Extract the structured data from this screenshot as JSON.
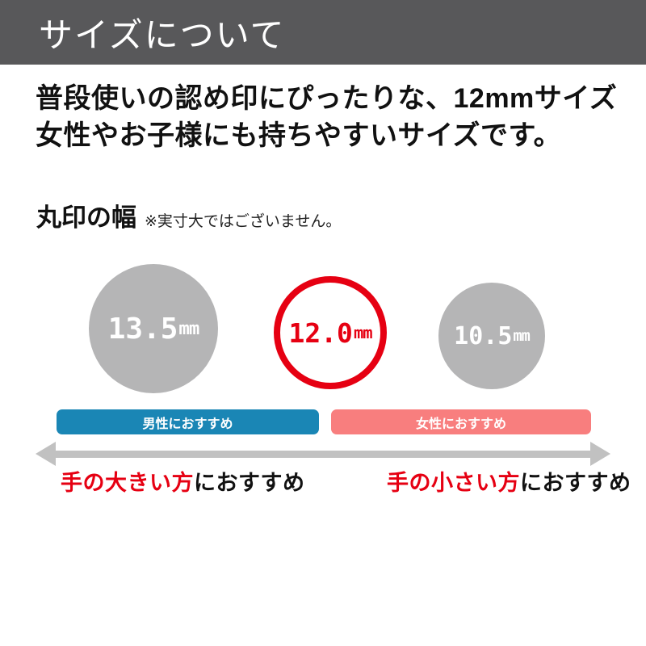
{
  "header": {
    "title": "サイズについて"
  },
  "intro": {
    "line1": "普段使いの認め印にぴったりな、12mmサイズ",
    "line2": "女性やお子様にも持ちやすいサイズです。"
  },
  "section": {
    "title": "丸印の幅",
    "note": "※実寸大ではございません。"
  },
  "sizes": [
    {
      "value": "13.5",
      "unit": "mm",
      "style": "gray"
    },
    {
      "value": "12.0",
      "unit": "mm",
      "style": "red-outline-selected"
    },
    {
      "value": "10.5",
      "unit": "mm",
      "style": "gray"
    }
  ],
  "recommend_bars": [
    {
      "label": "男性におすすめ"
    },
    {
      "label": "女性におすすめ"
    }
  ],
  "hand_labels": [
    {
      "highlight": "手の大きい方",
      "rest": "におすすめ"
    },
    {
      "highlight": "手の小さい方",
      "rest": "におすすめ"
    }
  ],
  "colors": {
    "header_bg": "#58585A",
    "text_dark": "#111111",
    "circle_gray": "#B5B5B6",
    "accent_red": "#E60012",
    "male_blue": "#1A86B5",
    "female_pink": "#F87E7E",
    "arrow_gray": "#C1C1C1"
  }
}
